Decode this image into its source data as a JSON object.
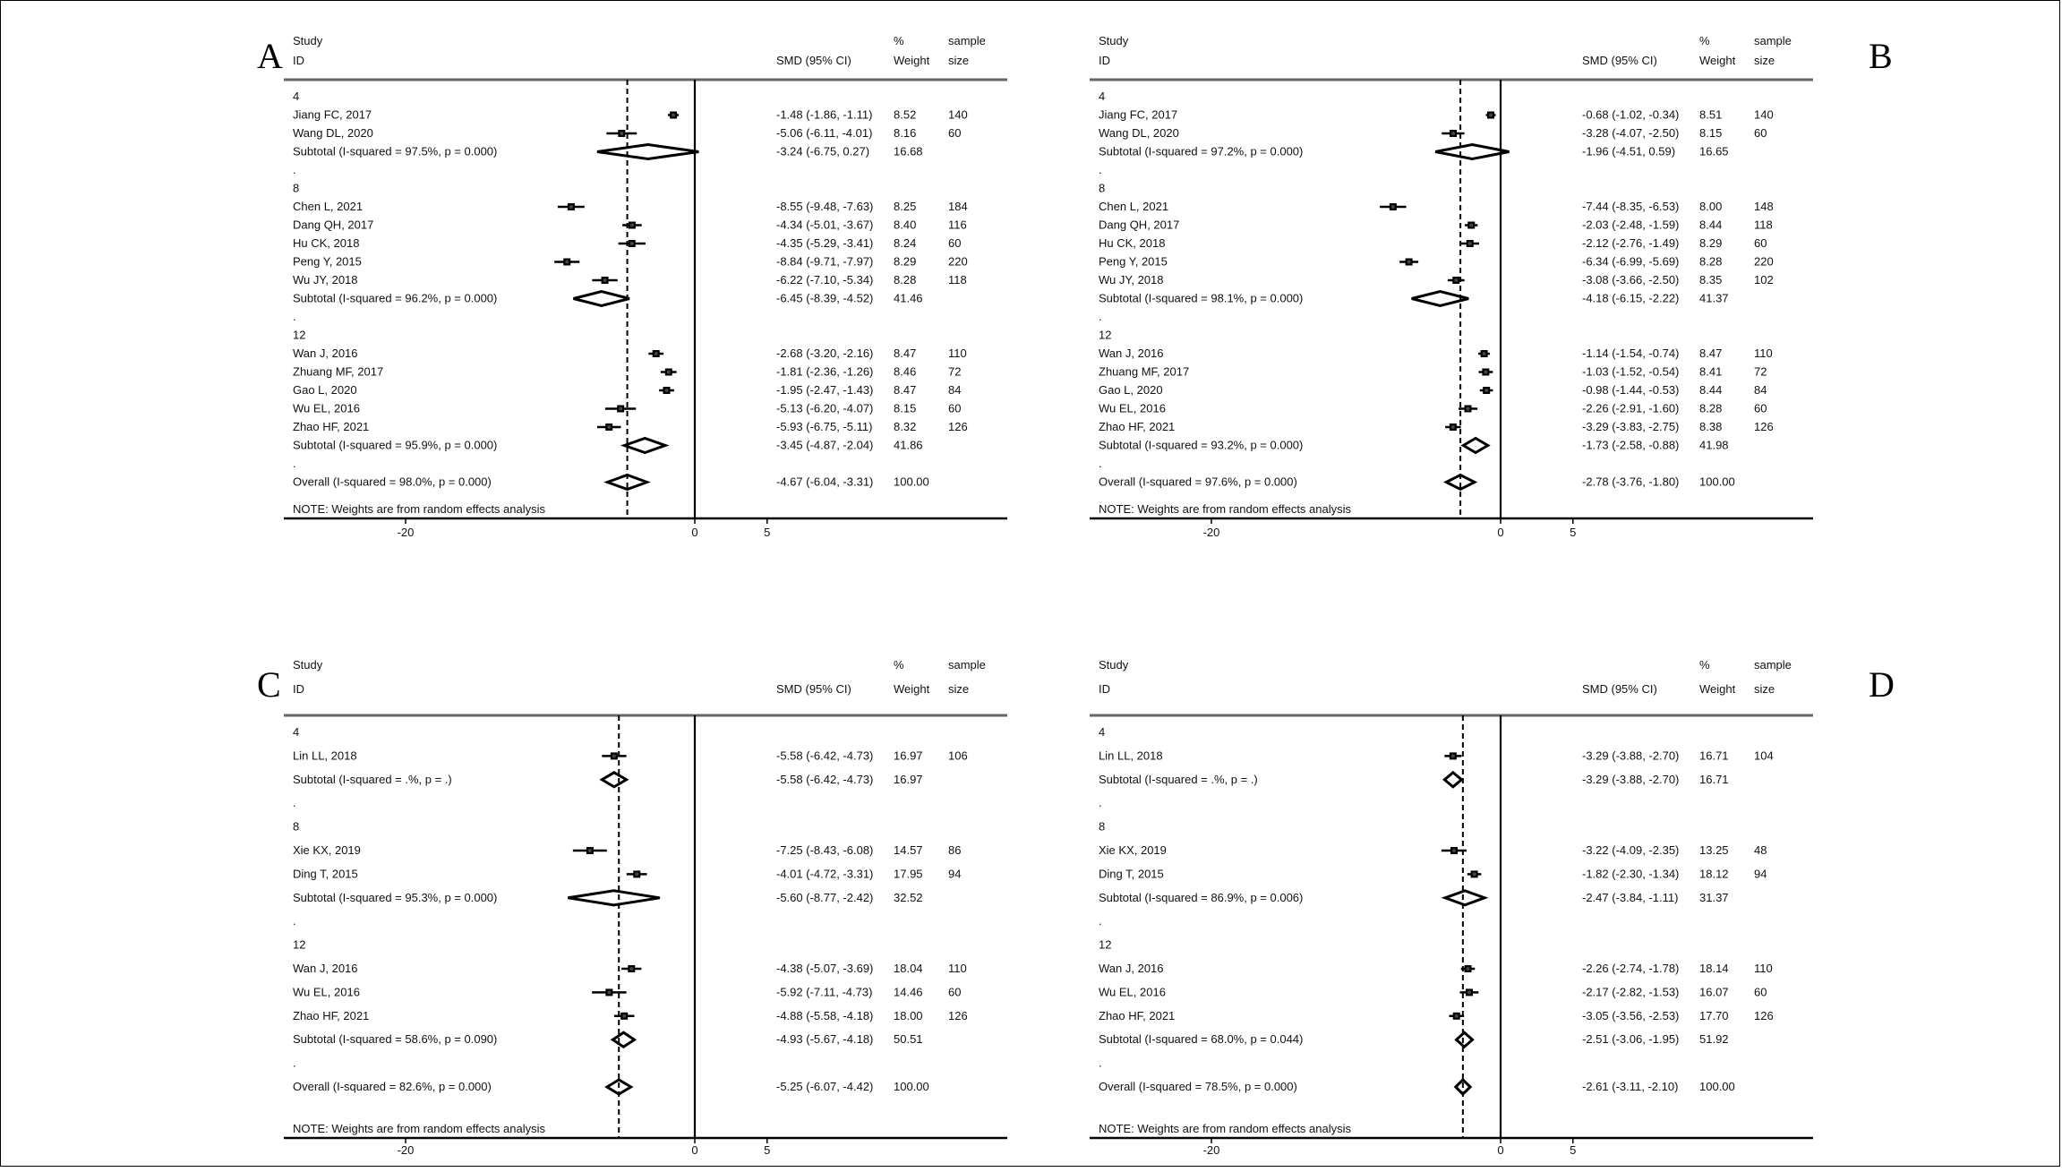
{
  "chart_data": [
    {
      "type": "forest",
      "panel_label": "A",
      "header": {
        "study": "Study",
        "id": "ID",
        "effect": "SMD (95% CI)",
        "pct": "%",
        "weight": "Weight",
        "sample": "sample",
        "size": "size"
      },
      "xticks": [
        -20,
        0,
        5
      ],
      "xlim": [
        -28.6,
        21.8
      ],
      "overall_line": -4.67,
      "note": "NOTE: Weights are from random effects analysis",
      "groups": [
        {
          "label": "4",
          "studies": [
            {
              "name": "Jiang FC, 2017",
              "smd": -1.48,
              "lo": -1.86,
              "hi": -1.11,
              "ci": "-1.48 (-1.86, -1.11)",
              "weight": "8.52",
              "n": "140"
            },
            {
              "name": "Wang DL, 2020",
              "smd": -5.06,
              "lo": -6.11,
              "hi": -4.01,
              "ci": "-5.06 (-6.11, -4.01)",
              "weight": "8.16",
              "n": "60"
            }
          ],
          "subtotal": {
            "label": "Subtotal  (I-squared = 97.5%, p = 0.000)",
            "smd": -3.24,
            "lo": -6.75,
            "hi": 0.27,
            "ci": "-3.24 (-6.75, 0.27)",
            "weight": "16.68"
          }
        },
        {
          "label": "8",
          "studies": [
            {
              "name": "Chen L, 2021",
              "smd": -8.55,
              "lo": -9.48,
              "hi": -7.63,
              "ci": "-8.55 (-9.48, -7.63)",
              "weight": "8.25",
              "n": "184"
            },
            {
              "name": "Dang QH, 2017",
              "smd": -4.34,
              "lo": -5.01,
              "hi": -3.67,
              "ci": "-4.34 (-5.01, -3.67)",
              "weight": "8.40",
              "n": "116"
            },
            {
              "name": "Hu CK, 2018",
              "smd": -4.35,
              "lo": -5.29,
              "hi": -3.41,
              "ci": "-4.35 (-5.29, -3.41)",
              "weight": "8.24",
              "n": "60"
            },
            {
              "name": "Peng Y, 2015",
              "smd": -8.84,
              "lo": -9.71,
              "hi": -7.97,
              "ci": "-8.84 (-9.71, -7.97)",
              "weight": "8.29",
              "n": "220"
            },
            {
              "name": "Wu JY, 2018",
              "smd": -6.22,
              "lo": -7.1,
              "hi": -5.34,
              "ci": "-6.22 (-7.10, -5.34)",
              "weight": "8.28",
              "n": "118"
            }
          ],
          "subtotal": {
            "label": "Subtotal  (I-squared = 96.2%, p = 0.000)",
            "smd": -6.45,
            "lo": -8.39,
            "hi": -4.52,
            "ci": "-6.45 (-8.39, -4.52)",
            "weight": "41.46"
          }
        },
        {
          "label": "12",
          "studies": [
            {
              "name": "Wan J, 2016",
              "smd": -2.68,
              "lo": -3.2,
              "hi": -2.16,
              "ci": "-2.68 (-3.20, -2.16)",
              "weight": "8.47",
              "n": "110"
            },
            {
              "name": "Zhuang MF, 2017",
              "smd": -1.81,
              "lo": -2.36,
              "hi": -1.26,
              "ci": "-1.81 (-2.36, -1.26)",
              "weight": "8.46",
              "n": "72"
            },
            {
              "name": "Gao L, 2020",
              "smd": -1.95,
              "lo": -2.47,
              "hi": -1.43,
              "ci": "-1.95 (-2.47, -1.43)",
              "weight": "8.47",
              "n": "84"
            },
            {
              "name": "Wu EL, 2016",
              "smd": -5.13,
              "lo": -6.2,
              "hi": -4.07,
              "ci": "-5.13 (-6.20, -4.07)",
              "weight": "8.15",
              "n": "60"
            },
            {
              "name": "Zhao HF, 2021",
              "smd": -5.93,
              "lo": -6.75,
              "hi": -5.11,
              "ci": "-5.93 (-6.75, -5.11)",
              "weight": "8.32",
              "n": "126"
            }
          ],
          "subtotal": {
            "label": "Subtotal  (I-squared = 95.9%, p = 0.000)",
            "smd": -3.45,
            "lo": -4.87,
            "hi": -2.04,
            "ci": "-3.45 (-4.87, -2.04)",
            "weight": "41.86"
          }
        }
      ],
      "overall": {
        "label": "Overall  (I-squared = 98.0%, p = 0.000)",
        "smd": -4.67,
        "lo": -6.04,
        "hi": -3.31,
        "ci": "-4.67 (-6.04, -3.31)",
        "weight": "100.00"
      }
    },
    {
      "type": "forest",
      "panel_label": "B",
      "header": {
        "study": "Study",
        "id": "ID",
        "effect": "SMD (95% CI)",
        "pct": "%",
        "weight": "Weight",
        "sample": "sample",
        "size": "size"
      },
      "xticks": [
        -20,
        0,
        5
      ],
      "xlim": [
        -28.6,
        21.8
      ],
      "overall_line": -2.78,
      "note": "NOTE: Weights are from random effects analysis",
      "groups": [
        {
          "label": "4",
          "studies": [
            {
              "name": "Jiang FC, 2017",
              "smd": -0.68,
              "lo": -1.02,
              "hi": -0.34,
              "ci": "-0.68 (-1.02, -0.34)",
              "weight": "8.51",
              "n": "140"
            },
            {
              "name": "Wang DL, 2020",
              "smd": -3.28,
              "lo": -4.07,
              "hi": -2.5,
              "ci": "-3.28 (-4.07, -2.50)",
              "weight": "8.15",
              "n": "60"
            }
          ],
          "subtotal": {
            "label": "Subtotal  (I-squared = 97.2%, p = 0.000)",
            "smd": -1.96,
            "lo": -4.51,
            "hi": 0.59,
            "ci": "-1.96 (-4.51, 0.59)",
            "weight": "16.65"
          }
        },
        {
          "label": "8",
          "studies": [
            {
              "name": "Chen L, 2021",
              "smd": -7.44,
              "lo": -8.35,
              "hi": -6.53,
              "ci": "-7.44 (-8.35, -6.53)",
              "weight": "8.00",
              "n": "148"
            },
            {
              "name": "Dang QH, 2017",
              "smd": -2.03,
              "lo": -2.48,
              "hi": -1.59,
              "ci": "-2.03 (-2.48, -1.59)",
              "weight": "8.44",
              "n": "118"
            },
            {
              "name": "Hu CK, 2018",
              "smd": -2.12,
              "lo": -2.76,
              "hi": -1.49,
              "ci": "-2.12 (-2.76, -1.49)",
              "weight": "8.29",
              "n": "60"
            },
            {
              "name": "Peng Y, 2015",
              "smd": -6.34,
              "lo": -6.99,
              "hi": -5.69,
              "ci": "-6.34 (-6.99, -5.69)",
              "weight": "8.28",
              "n": "220"
            },
            {
              "name": "Wu JY, 2018",
              "smd": -3.08,
              "lo": -3.66,
              "hi": -2.5,
              "ci": "-3.08 (-3.66, -2.50)",
              "weight": "8.35",
              "n": "102"
            }
          ],
          "subtotal": {
            "label": "Subtotal  (I-squared = 98.1%, p = 0.000)",
            "smd": -4.18,
            "lo": -6.15,
            "hi": -2.22,
            "ci": "-4.18 (-6.15, -2.22)",
            "weight": "41.37"
          }
        },
        {
          "label": "12",
          "studies": [
            {
              "name": "Wan J, 2016",
              "smd": -1.14,
              "lo": -1.54,
              "hi": -0.74,
              "ci": "-1.14 (-1.54, -0.74)",
              "weight": "8.47",
              "n": "110"
            },
            {
              "name": "Zhuang MF, 2017",
              "smd": -1.03,
              "lo": -1.52,
              "hi": -0.54,
              "ci": "-1.03 (-1.52, -0.54)",
              "weight": "8.41",
              "n": "72"
            },
            {
              "name": "Gao L, 2020",
              "smd": -0.98,
              "lo": -1.44,
              "hi": -0.53,
              "ci": "-0.98 (-1.44, -0.53)",
              "weight": "8.44",
              "n": "84"
            },
            {
              "name": "Wu EL, 2016",
              "smd": -2.26,
              "lo": -2.91,
              "hi": -1.6,
              "ci": "-2.26 (-2.91, -1.60)",
              "weight": "8.28",
              "n": "60"
            },
            {
              "name": "Zhao HF, 2021",
              "smd": -3.29,
              "lo": -3.83,
              "hi": -2.75,
              "ci": "-3.29 (-3.83, -2.75)",
              "weight": "8.38",
              "n": "126"
            }
          ],
          "subtotal": {
            "label": "Subtotal  (I-squared = 93.2%, p = 0.000)",
            "smd": -1.73,
            "lo": -2.58,
            "hi": -0.88,
            "ci": "-1.73 (-2.58, -0.88)",
            "weight": "41.98"
          }
        }
      ],
      "overall": {
        "label": "Overall  (I-squared = 97.6%, p = 0.000)",
        "smd": -2.78,
        "lo": -3.76,
        "hi": -1.8,
        "ci": "-2.78 (-3.76, -1.80)",
        "weight": "100.00"
      }
    },
    {
      "type": "forest",
      "panel_label": "C",
      "header": {
        "study": "Study",
        "id": "ID",
        "effect": "SMD (95% CI)",
        "pct": "%",
        "weight": "Weight",
        "sample": "sample",
        "size": "size"
      },
      "xticks": [
        -20,
        0,
        5
      ],
      "xlim": [
        -28.6,
        21.8
      ],
      "overall_line": -5.25,
      "note": "NOTE: Weights are from random effects analysis",
      "groups": [
        {
          "label": "4",
          "studies": [
            {
              "name": "Lin LL, 2018",
              "smd": -5.58,
              "lo": -6.42,
              "hi": -4.73,
              "ci": "-5.58 (-6.42, -4.73)",
              "weight": "16.97",
              "n": "106"
            }
          ],
          "subtotal": {
            "label": "Subtotal  (I-squared = .%, p = .)",
            "smd": -5.58,
            "lo": -6.42,
            "hi": -4.73,
            "ci": "-5.58 (-6.42, -4.73)",
            "weight": "16.97"
          }
        },
        {
          "label": "8",
          "studies": [
            {
              "name": "Xie KX, 2019",
              "smd": -7.25,
              "lo": -8.43,
              "hi": -6.08,
              "ci": "-7.25 (-8.43, -6.08)",
              "weight": "14.57",
              "n": "86"
            },
            {
              "name": "Ding T, 2015",
              "smd": -4.01,
              "lo": -4.72,
              "hi": -3.31,
              "ci": "-4.01 (-4.72, -3.31)",
              "weight": "17.95",
              "n": "94"
            }
          ],
          "subtotal": {
            "label": "Subtotal  (I-squared = 95.3%, p = 0.000)",
            "smd": -5.6,
            "lo": -8.77,
            "hi": -2.42,
            "ci": "-5.60 (-8.77, -2.42)",
            "weight": "32.52"
          }
        },
        {
          "label": "12",
          "studies": [
            {
              "name": "Wan J, 2016",
              "smd": -4.38,
              "lo": -5.07,
              "hi": -3.69,
              "ci": "-4.38 (-5.07, -3.69)",
              "weight": "18.04",
              "n": "110"
            },
            {
              "name": "Wu EL, 2016",
              "smd": -5.92,
              "lo": -7.11,
              "hi": -4.73,
              "ci": "-5.92 (-7.11, -4.73)",
              "weight": "14.46",
              "n": "60"
            },
            {
              "name": "Zhao HF, 2021",
              "smd": -4.88,
              "lo": -5.58,
              "hi": -4.18,
              "ci": "-4.88 (-5.58, -4.18)",
              "weight": "18.00",
              "n": "126"
            }
          ],
          "subtotal": {
            "label": "Subtotal  (I-squared = 58.6%, p = 0.090)",
            "smd": -4.93,
            "lo": -5.67,
            "hi": -4.18,
            "ci": "-4.93 (-5.67, -4.18)",
            "weight": "50.51"
          }
        }
      ],
      "overall": {
        "label": "Overall  (I-squared = 82.6%, p = 0.000)",
        "smd": -5.25,
        "lo": -6.07,
        "hi": -4.42,
        "ci": "-5.25 (-6.07, -4.42)",
        "weight": "100.00"
      }
    },
    {
      "type": "forest",
      "panel_label": "D",
      "header": {
        "study": "Study",
        "id": "ID",
        "effect": "SMD (95% CI)",
        "pct": "%",
        "weight": "Weight",
        "sample": "sample",
        "size": "size"
      },
      "xticks": [
        -20,
        0,
        5
      ],
      "xlim": [
        -28.6,
        21.8
      ],
      "overall_line": -2.61,
      "note": "NOTE: Weights are from random effects analysis",
      "groups": [
        {
          "label": "4",
          "studies": [
            {
              "name": "Lin LL, 2018",
              "smd": -3.29,
              "lo": -3.88,
              "hi": -2.7,
              "ci": "-3.29 (-3.88, -2.70)",
              "weight": "16.71",
              "n": "104"
            }
          ],
          "subtotal": {
            "label": "Subtotal  (I-squared = .%, p = .)",
            "smd": -3.29,
            "lo": -3.88,
            "hi": -2.7,
            "ci": "-3.29 (-3.88, -2.70)",
            "weight": "16.71"
          }
        },
        {
          "label": "8",
          "studies": [
            {
              "name": "Xie KX, 2019",
              "smd": -3.22,
              "lo": -4.09,
              "hi": -2.35,
              "ci": "-3.22 (-4.09, -2.35)",
              "weight": "13.25",
              "n": "48"
            },
            {
              "name": "Ding T, 2015",
              "smd": -1.82,
              "lo": -2.3,
              "hi": -1.34,
              "ci": "-1.82 (-2.30, -1.34)",
              "weight": "18.12",
              "n": "94"
            }
          ],
          "subtotal": {
            "label": "Subtotal  (I-squared = 86.9%, p = 0.006)",
            "smd": -2.47,
            "lo": -3.84,
            "hi": -1.11,
            "ci": "-2.47 (-3.84, -1.11)",
            "weight": "31.37"
          }
        },
        {
          "label": "12",
          "studies": [
            {
              "name": "Wan J, 2016",
              "smd": -2.26,
              "lo": -2.74,
              "hi": -1.78,
              "ci": "-2.26 (-2.74, -1.78)",
              "weight": "18.14",
              "n": "110"
            },
            {
              "name": "Wu EL, 2016",
              "smd": -2.17,
              "lo": -2.82,
              "hi": -1.53,
              "ci": "-2.17 (-2.82, -1.53)",
              "weight": "16.07",
              "n": "60"
            },
            {
              "name": "Zhao HF, 2021",
              "smd": -3.05,
              "lo": -3.56,
              "hi": -2.53,
              "ci": "-3.05 (-3.56, -2.53)",
              "weight": "17.70",
              "n": "126"
            }
          ],
          "subtotal": {
            "label": "Subtotal  (I-squared = 68.0%, p = 0.044)",
            "smd": -2.51,
            "lo": -3.06,
            "hi": -1.95,
            "ci": "-2.51 (-3.06, -1.95)",
            "weight": "51.92"
          }
        }
      ],
      "overall": {
        "label": "Overall  (I-squared = 78.5%, p = 0.000)",
        "smd": -2.61,
        "lo": -3.11,
        "hi": -2.1,
        "ci": "-2.61 (-3.11, -2.10)",
        "weight": "100.00"
      }
    }
  ]
}
